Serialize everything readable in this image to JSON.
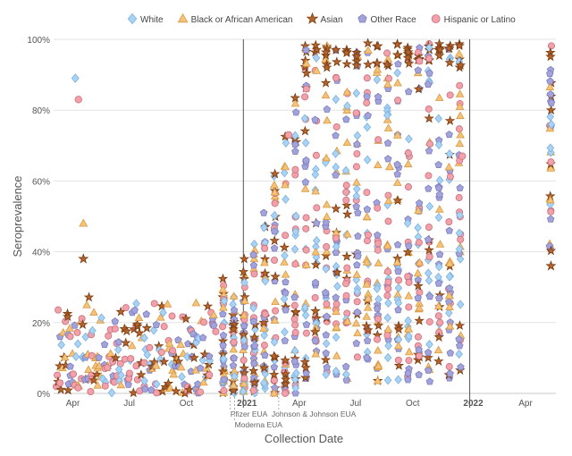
{
  "chart_data": {
    "type": "scatter",
    "title": "",
    "xlabel": "Collection Date",
    "ylabel": "Seroprevalence",
    "x_range": [
      "2020-03-01",
      "2022-05-20"
    ],
    "ylim": [
      0,
      100
    ],
    "y_ticks": [
      0,
      20,
      40,
      60,
      80,
      100
    ],
    "y_tick_labels": [
      "0%",
      "20%",
      "40%",
      "60%",
      "80%",
      "100%"
    ],
    "x_ticks": [
      {
        "date": "2020-04-01",
        "label": "Apr",
        "bold": false
      },
      {
        "date": "2020-07-01",
        "label": "Jul",
        "bold": false
      },
      {
        "date": "2020-10-01",
        "label": "Oct",
        "bold": false
      },
      {
        "date": "2021-01-01",
        "label": "2021",
        "bold": true
      },
      {
        "date": "2021-04-01",
        "label": "Apr",
        "bold": false
      },
      {
        "date": "2021-07-01",
        "label": "Jul",
        "bold": false
      },
      {
        "date": "2021-10-01",
        "label": "Oct",
        "bold": false
      },
      {
        "date": "2022-01-01",
        "label": "2022",
        "bold": true
      },
      {
        "date": "2022-04-01",
        "label": "Apr",
        "bold": false
      }
    ],
    "legend_position": "top",
    "series": [
      {
        "name": "White",
        "marker": "diamond",
        "color": "#a9d3f5",
        "stroke": "#7fb1dc"
      },
      {
        "name": "Black or African American",
        "marker": "triangle",
        "color": "#f5c27a",
        "stroke": "#d89a43"
      },
      {
        "name": "Asian",
        "marker": "star",
        "color": "#b5652c",
        "stroke": "#7a3c12"
      },
      {
        "name": "Other Race",
        "marker": "pentagon",
        "color": "#a3a3dc",
        "stroke": "#7d7dbd"
      },
      {
        "name": "Hispanic or Latino",
        "marker": "circle",
        "color": "#f2a0aa",
        "stroke": "#c8707c"
      }
    ],
    "outliers": [
      {
        "series": "White",
        "date": "2020-04-05",
        "value": 89
      },
      {
        "series": "Hispanic or Latino",
        "date": "2020-04-10",
        "value": 83
      },
      {
        "series": "Black or African American",
        "date": "2020-04-18",
        "value": 48
      },
      {
        "series": "Asian",
        "date": "2020-04-18",
        "value": 38
      },
      {
        "series": "Hispanic or Latino",
        "date": "2021-03-15",
        "value": 73
      },
      {
        "series": "Black or African American",
        "date": "2021-08-25",
        "value": 64
      },
      {
        "series": "Hispanic or Latino",
        "date": "2021-12-20",
        "value": 67
      },
      {
        "series": "Asian",
        "date": "2022-05-12",
        "value": 36
      }
    ],
    "annotations": [
      {
        "label": "Pfizer EUA",
        "date": "2020-12-11"
      },
      {
        "label": "Moderna EUA",
        "date": "2020-12-18"
      },
      {
        "label": "Johnson & Johnson EUA",
        "date": "2021-02-27"
      }
    ]
  }
}
